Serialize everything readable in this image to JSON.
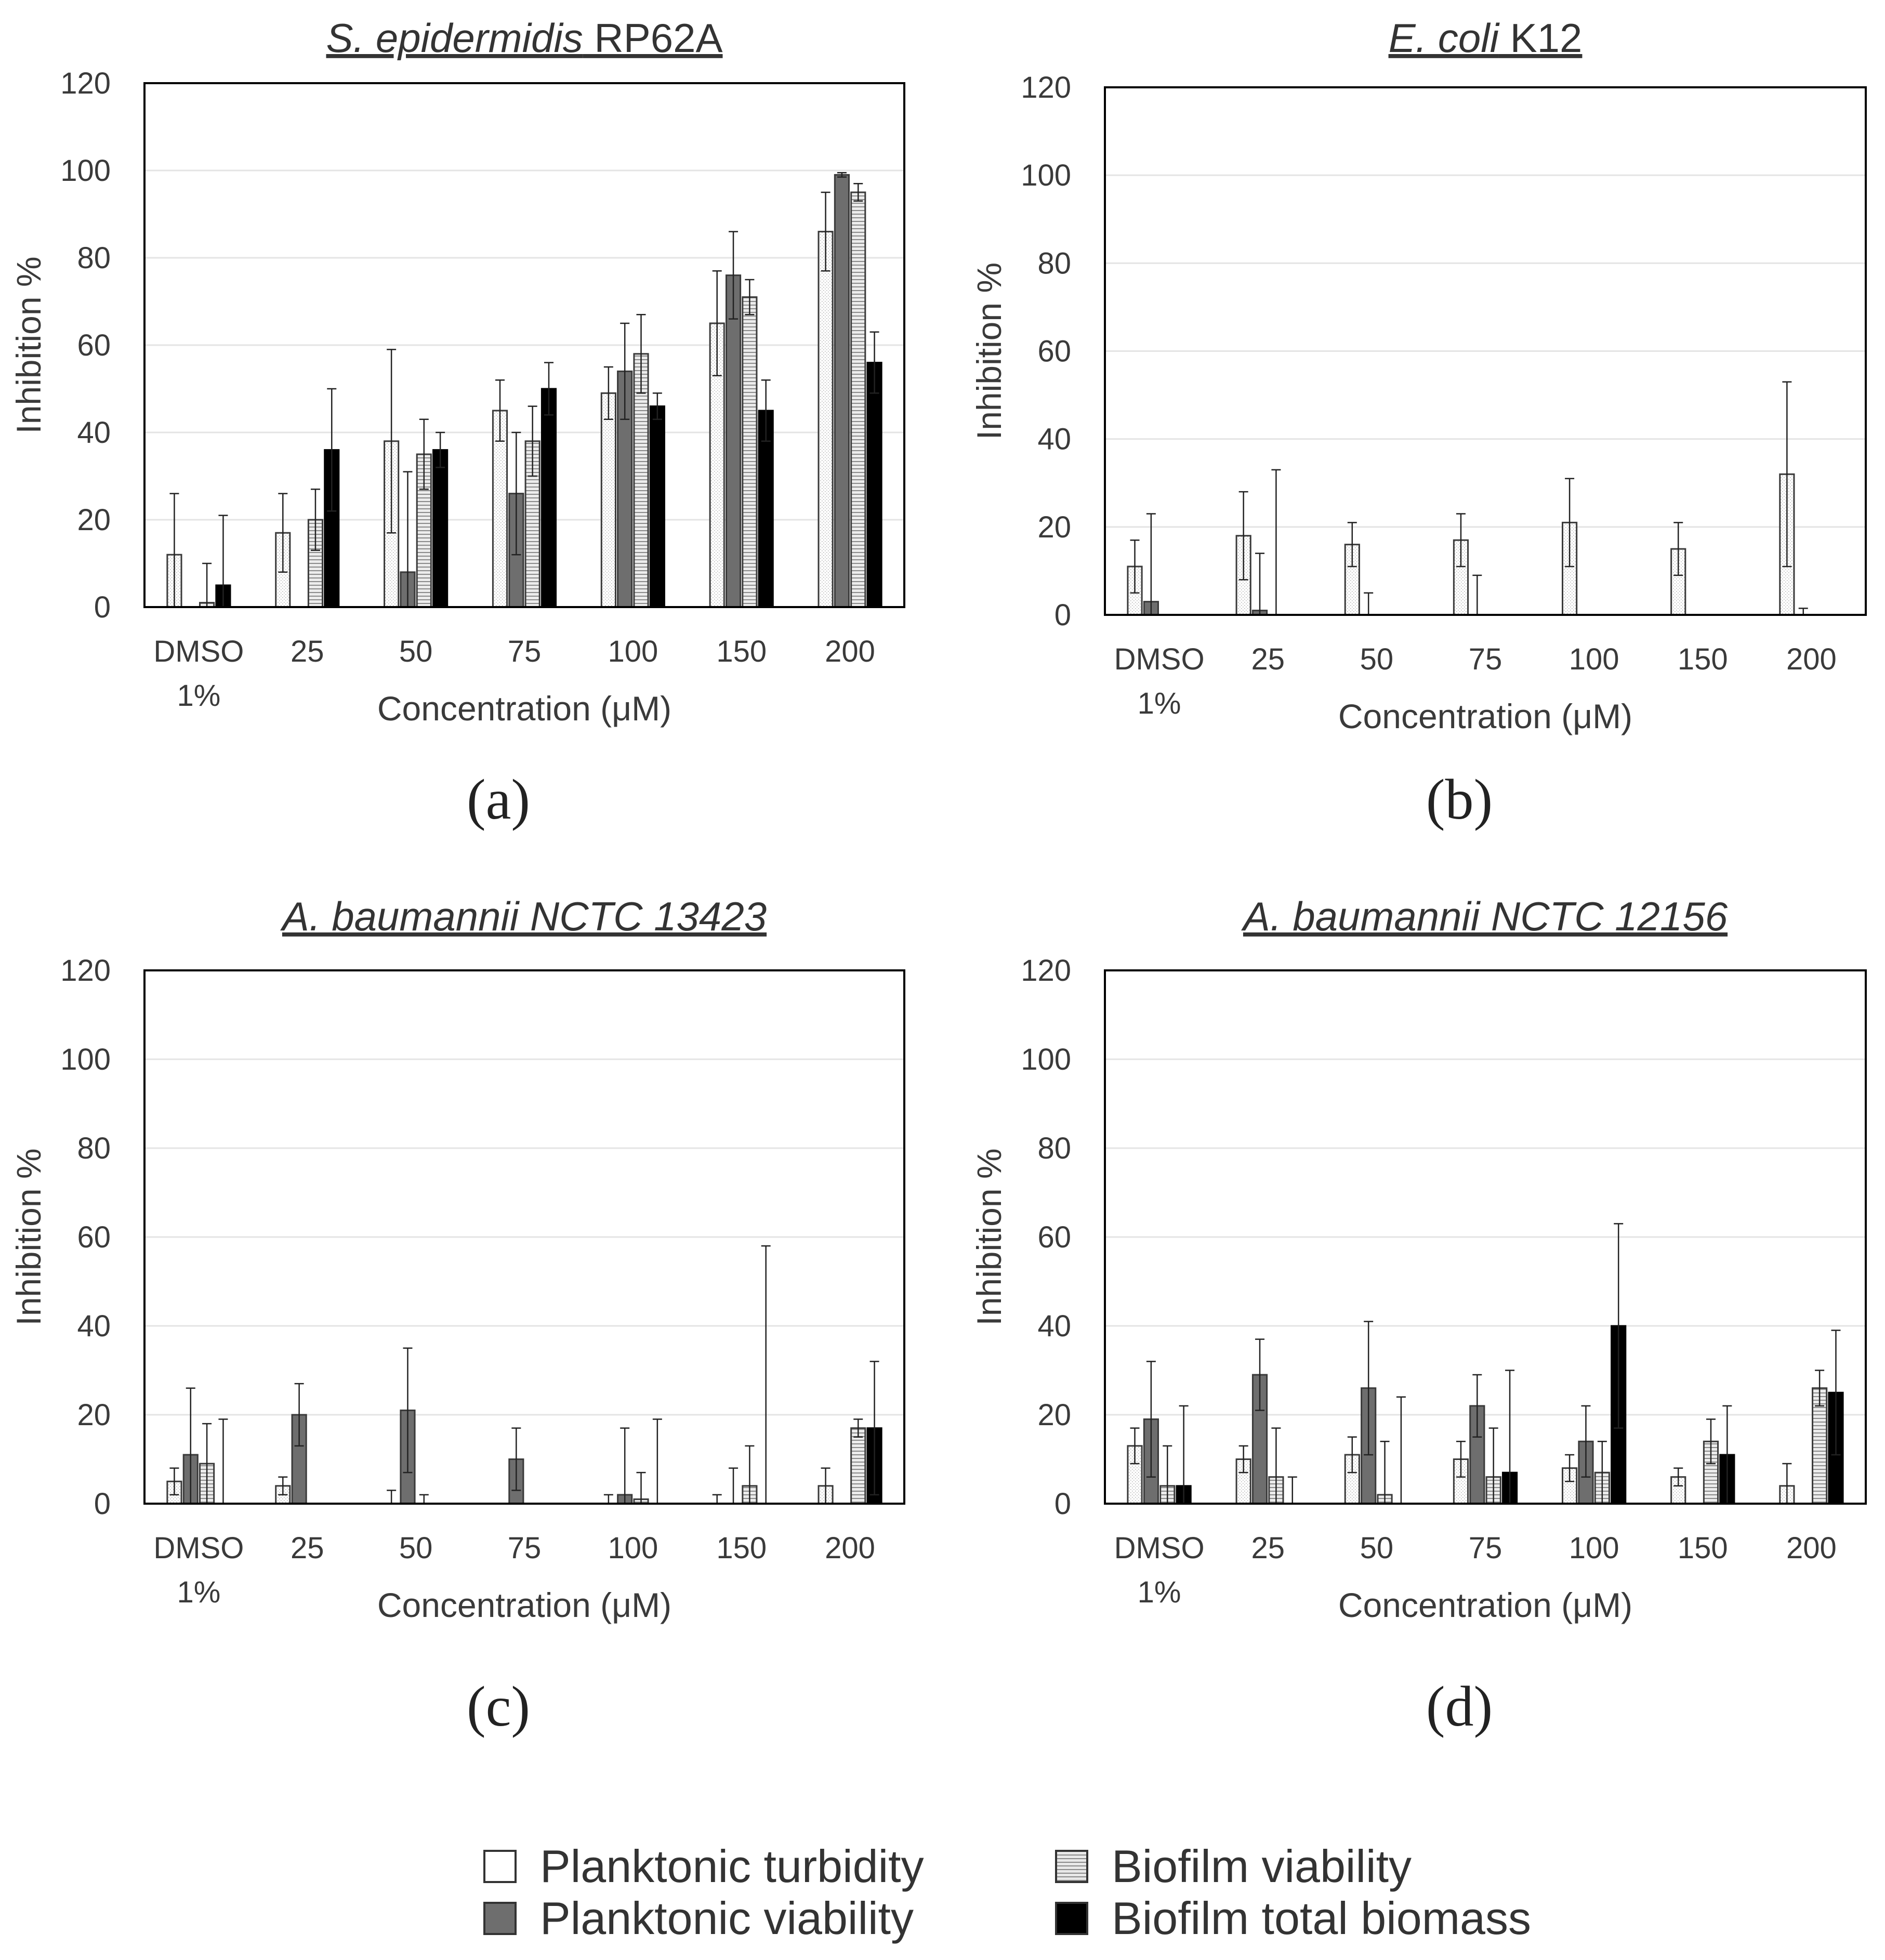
{
  "legend": {
    "planktonic_turbidity": "Planktonic turbidity",
    "planktonic_viability": "Planktonic viability",
    "biofilm_viability": "Biofilm viability",
    "biofilm_total_biomass": "Biofilm total biomass"
  },
  "chart_data": [
    {
      "type": "bar",
      "panel_label": "(a)",
      "title_italic": "S. epidermidis",
      "title_rest": " RP62A",
      "categories": [
        [
          "DMSO",
          "1%"
        ],
        [
          "25"
        ],
        [
          "50"
        ],
        [
          "75"
        ],
        [
          "100"
        ],
        [
          "150"
        ],
        [
          "200"
        ]
      ],
      "xlabel": "Concentration (μM)",
      "ylabel": "Inhibition %",
      "ylim": [
        0,
        120
      ],
      "yticks": [
        0,
        20,
        40,
        60,
        80,
        100,
        120
      ],
      "series": [
        {
          "name": "Planktonic turbidity",
          "values": [
            12,
            17,
            38,
            45,
            49,
            65,
            86
          ],
          "errors": [
            14,
            9,
            21,
            7,
            6,
            12,
            9
          ]
        },
        {
          "name": "Planktonic viability",
          "values": [
            0,
            0,
            8,
            26,
            54,
            76,
            99
          ],
          "errors": [
            0,
            0,
            23,
            14,
            11,
            10,
            0.5
          ]
        },
        {
          "name": "Biofilm viability",
          "values": [
            1,
            20,
            35,
            38,
            58,
            71,
            95
          ],
          "errors": [
            9,
            7,
            8,
            8,
            9,
            4,
            2
          ]
        },
        {
          "name": "Biofilm total biomass",
          "values": [
            5,
            36,
            36,
            50,
            46,
            45,
            56
          ],
          "errors": [
            16,
            14,
            4,
            6,
            3,
            7,
            7
          ]
        }
      ]
    },
    {
      "type": "bar",
      "panel_label": "(b)",
      "title_italic": "E. coli",
      "title_rest": " K12",
      "categories": [
        [
          "DMSO",
          "1%"
        ],
        [
          "25"
        ],
        [
          "50"
        ],
        [
          "75"
        ],
        [
          "100"
        ],
        [
          "150"
        ],
        [
          "200"
        ]
      ],
      "xlabel": "Concentration (μM)",
      "ylabel": "Inhibition %",
      "ylim": [
        0,
        120
      ],
      "yticks": [
        0,
        20,
        40,
        60,
        80,
        100,
        120
      ],
      "series": [
        {
          "name": "Planktonic turbidity",
          "values": [
            11,
            18,
            16,
            17,
            21,
            15,
            32
          ],
          "errors": [
            6,
            10,
            5,
            6,
            10,
            6,
            21
          ]
        },
        {
          "name": "Planktonic viability",
          "values": [
            3,
            1,
            0,
            0,
            0,
            0,
            0
          ],
          "errors": [
            20,
            13,
            5,
            9,
            0,
            0,
            1.5
          ]
        },
        {
          "name": "Biofilm viability",
          "values": [
            0,
            0,
            0,
            0,
            0,
            0,
            0
          ],
          "errors": [
            0,
            33,
            0,
            0,
            0,
            0,
            0
          ]
        },
        {
          "name": "Biofilm total biomass",
          "values": [
            0,
            0,
            0,
            0,
            0,
            0,
            0
          ],
          "errors": [
            0,
            0,
            0,
            0,
            0,
            0,
            0
          ]
        }
      ]
    },
    {
      "type": "bar",
      "panel_label": "(c)",
      "title_italic": "A. baumannii NCTC 13423",
      "title_rest": "",
      "categories": [
        [
          "DMSO",
          "1%"
        ],
        [
          "25"
        ],
        [
          "50"
        ],
        [
          "75"
        ],
        [
          "100"
        ],
        [
          "150"
        ],
        [
          "200"
        ]
      ],
      "xlabel": "Concentration (μM)",
      "ylabel": "Inhibition %",
      "ylim": [
        0,
        120
      ],
      "yticks": [
        0,
        20,
        40,
        60,
        80,
        100,
        120
      ],
      "series": [
        {
          "name": "Planktonic turbidity",
          "values": [
            5,
            4,
            0,
            0,
            0,
            0,
            4
          ],
          "errors": [
            3,
            2,
            3,
            0,
            2,
            2,
            4
          ]
        },
        {
          "name": "Planktonic viability",
          "values": [
            11,
            20,
            21,
            10,
            2,
            0,
            0
          ],
          "errors": [
            15,
            7,
            14,
            7,
            15,
            8,
            0
          ]
        },
        {
          "name": "Biofilm viability",
          "values": [
            9,
            0,
            0,
            0,
            1,
            4,
            17
          ],
          "errors": [
            9,
            0,
            2,
            0,
            6,
            9,
            2
          ]
        },
        {
          "name": "Biofilm total biomass",
          "values": [
            0,
            0,
            0,
            0,
            0,
            0,
            17
          ],
          "errors": [
            19,
            0,
            0,
            0,
            19,
            58,
            15
          ]
        }
      ]
    },
    {
      "type": "bar",
      "panel_label": "(d)",
      "title_italic": "A. baumannii NCTC 12156",
      "title_rest": "",
      "categories": [
        [
          "DMSO",
          "1%"
        ],
        [
          "25"
        ],
        [
          "50"
        ],
        [
          "75"
        ],
        [
          "100"
        ],
        [
          "150"
        ],
        [
          "200"
        ]
      ],
      "xlabel": "Concentration (μM)",
      "ylabel": "Inhibition %",
      "ylim": [
        0,
        120
      ],
      "yticks": [
        0,
        20,
        40,
        60,
        80,
        100,
        120
      ],
      "series": [
        {
          "name": "Planktonic turbidity",
          "values": [
            13,
            10,
            11,
            10,
            8,
            6,
            4
          ],
          "errors": [
            4,
            3,
            4,
            4,
            3,
            2,
            5
          ]
        },
        {
          "name": "Planktonic viability",
          "values": [
            19,
            29,
            26,
            22,
            14,
            0,
            0
          ],
          "errors": [
            13,
            8,
            15,
            7,
            8,
            0,
            0
          ]
        },
        {
          "name": "Biofilm viability",
          "values": [
            4,
            6,
            2,
            6,
            7,
            14,
            26
          ],
          "errors": [
            9,
            11,
            12,
            11,
            7,
            5,
            4
          ]
        },
        {
          "name": "Biofilm total biomass",
          "values": [
            4,
            0,
            0,
            7,
            40,
            11,
            25
          ],
          "errors": [
            18,
            6,
            24,
            23,
            23,
            11,
            14
          ]
        }
      ]
    }
  ]
}
